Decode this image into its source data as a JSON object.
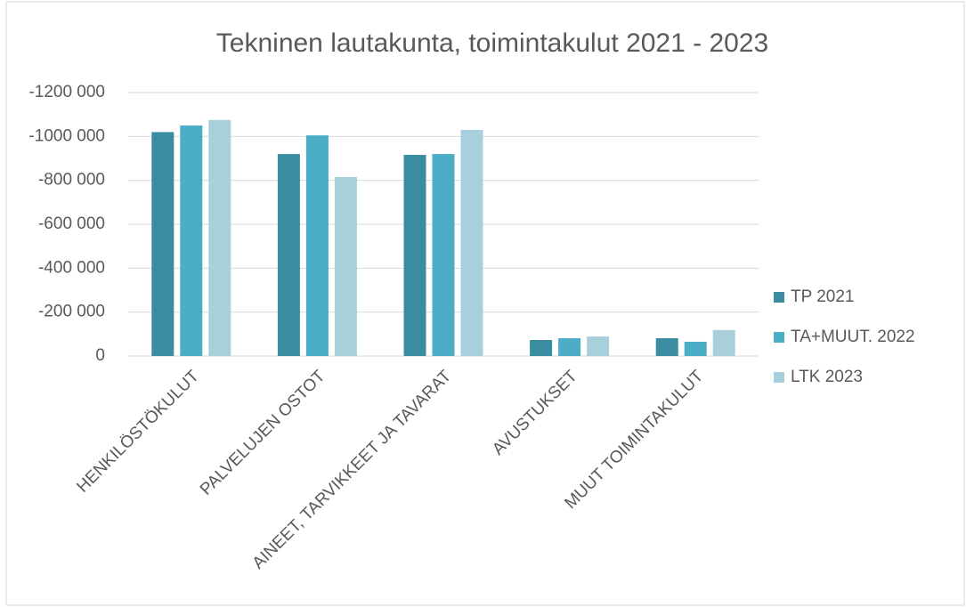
{
  "chart_data": {
    "type": "bar",
    "title": "Tekninen lautakunta, toimintakulut 2021 - 2023",
    "categories": [
      "HENKILÖSTÖKULUT",
      "PALVELUJEN OSTOT",
      "AINEET, TARVIKKEET JA TAVARAT",
      "AVUSTUKSET",
      "MUUT TOIMINTAKULUT"
    ],
    "series": [
      {
        "name": "TP 2021",
        "color": "#3a8ca0",
        "values": [
          -1020000,
          -920000,
          -916000,
          -73000,
          -81000
        ]
      },
      {
        "name": "TA+MUUT. 2022",
        "color": "#4badc6",
        "values": [
          -1050000,
          -1005000,
          -920000,
          -81000,
          -65000
        ]
      },
      {
        "name": "LTK 2023",
        "color": "#a8cfdc",
        "values": [
          -1075000,
          -815000,
          -1030000,
          -89000,
          -118000
        ]
      }
    ],
    "ylim": [
      0,
      -1200000
    ],
    "yticks": [
      0,
      {
        "value": -200000,
        "label": "-200 000"
      },
      {
        "value": -400000,
        "label": "-400 000"
      },
      {
        "value": -600000,
        "label": "-600 000"
      },
      {
        "value": -800000,
        "label": "-800 000"
      },
      {
        "value": -1000000,
        "label": "-1000 000"
      },
      {
        "value": -1200000,
        "label": "-1200 000"
      }
    ],
    "grid": true,
    "legend": "right"
  }
}
